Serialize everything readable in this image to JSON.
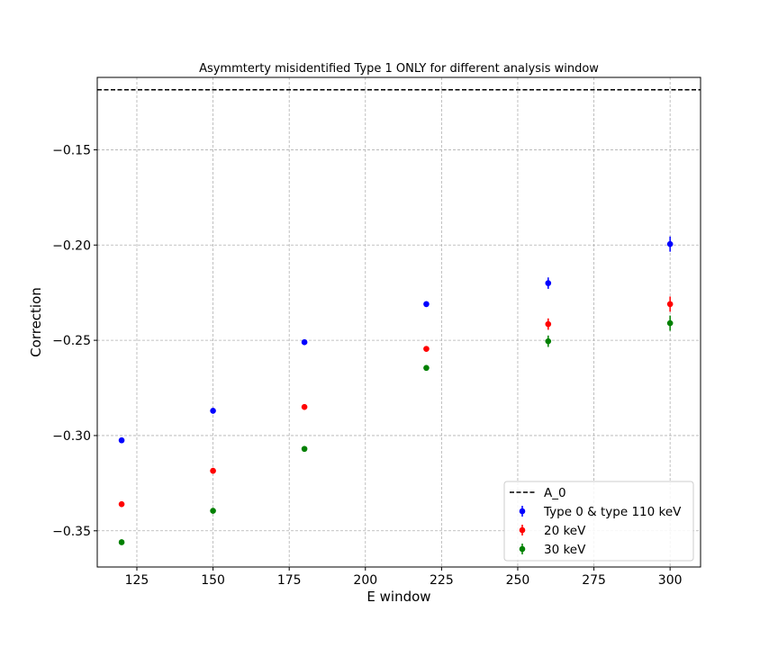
{
  "chart_data": {
    "type": "scatter",
    "title": "Asymmterty misidentified Type 1 ONLY for different analysis window",
    "xlabel": "E window",
    "ylabel": "Correction",
    "xlim": [
      112,
      310
    ],
    "ylim": [
      -0.369,
      -0.112
    ],
    "xticks": [
      125,
      150,
      175,
      200,
      225,
      250,
      275,
      300
    ],
    "yticks": [
      -0.15,
      -0.2,
      -0.25,
      -0.3,
      -0.35
    ],
    "xtick_labels": [
      "125",
      "150",
      "175",
      "200",
      "225",
      "250",
      "275",
      "300"
    ],
    "ytick_labels": [
      "−0.15",
      "−0.20",
      "−0.25",
      "−0.30",
      "−0.35"
    ],
    "grid": true,
    "legend_position": "lower-right",
    "reference_line": {
      "name": "A_0",
      "y": -0.1185,
      "style": "dashed",
      "color": "#000000"
    },
    "series": [
      {
        "name": "Type 0 & type 110 keV",
        "color": "#0000ff",
        "x": [
          120,
          150,
          180,
          220,
          260,
          300
        ],
        "y": [
          -0.3025,
          -0.287,
          -0.251,
          -0.231,
          -0.22,
          -0.1995
        ],
        "yerr": [
          0.0015,
          0.0015,
          0.0015,
          0.0015,
          0.003,
          0.004
        ]
      },
      {
        "name": "20 keV",
        "color": "#ff0000",
        "x": [
          120,
          150,
          180,
          220,
          260,
          300
        ],
        "y": [
          -0.336,
          -0.3185,
          -0.285,
          -0.2545,
          -0.2415,
          -0.231
        ],
        "yerr": [
          0.0015,
          0.0015,
          0.0015,
          0.0015,
          0.003,
          0.004
        ]
      },
      {
        "name": "30 keV",
        "color": "#008000",
        "x": [
          120,
          150,
          180,
          220,
          260,
          300
        ],
        "y": [
          -0.356,
          -0.3395,
          -0.307,
          -0.2645,
          -0.2505,
          -0.241
        ],
        "yerr": [
          0.0015,
          0.0015,
          0.0015,
          0.0015,
          0.003,
          0.004
        ]
      }
    ]
  }
}
